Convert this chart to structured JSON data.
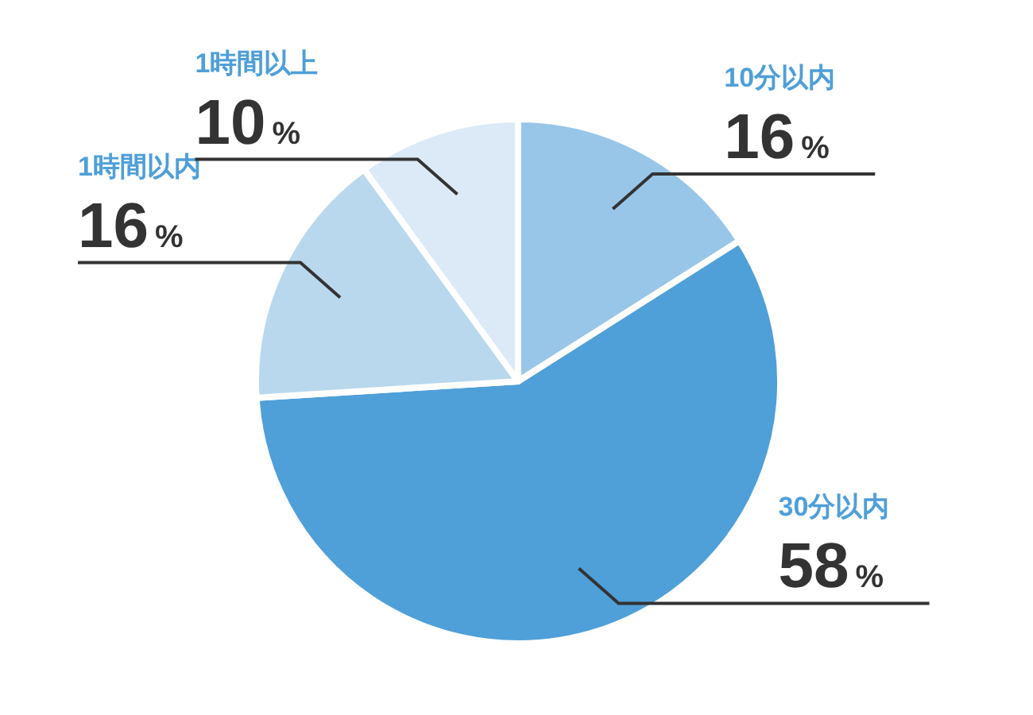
{
  "chart_data": {
    "type": "pie",
    "categories": [
      "10分以内",
      "30分以内",
      "1時間以内",
      "1時間以上"
    ],
    "values": [
      16,
      58,
      16,
      10
    ],
    "colors": [
      "#98c6e8",
      "#4f9fd8",
      "#b9d8ee",
      "#dbeaf6"
    ],
    "value_labels": [
      "16%",
      "58%",
      "16%",
      "10%"
    ]
  }
}
